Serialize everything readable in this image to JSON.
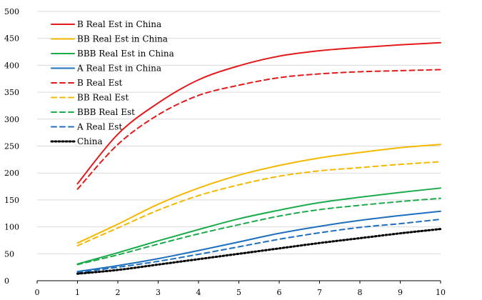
{
  "chart_data": {
    "type": "line",
    "title": "",
    "xlabel": "",
    "ylabel": "",
    "xlim": [
      0,
      10
    ],
    "ylim": [
      0,
      500
    ],
    "x_ticks": [
      0,
      1,
      2,
      3,
      4,
      5,
      6,
      7,
      8,
      9,
      10
    ],
    "y_ticks": [
      0,
      50,
      100,
      150,
      200,
      250,
      300,
      350,
      400,
      450,
      500
    ],
    "grid": "horizontal",
    "legend_position": "top-left",
    "x": [
      1,
      2,
      3,
      4,
      5,
      6,
      7,
      8,
      9,
      10
    ],
    "series": [
      {
        "name": "B Real Est in China",
        "color": "#e31a1c",
        "dash": "solid",
        "values": [
          180,
          272,
          330,
          373,
          399,
          417,
          427,
          433,
          438,
          442
        ]
      },
      {
        "name": "BB Real Est in China",
        "color": "#f5b800",
        "dash": "solid",
        "values": [
          70,
          105,
          142,
          172,
          196,
          214,
          228,
          238,
          247,
          253
        ]
      },
      {
        "name": "BBB Real Est in China",
        "color": "#1aab4b",
        "dash": "solid",
        "values": [
          31,
          52,
          74,
          95,
          115,
          131,
          145,
          155,
          164,
          172
        ]
      },
      {
        "name": "A Real Est in China",
        "color": "#1f6fbf",
        "dash": "solid",
        "values": [
          17,
          28,
          41,
          56,
          72,
          88,
          101,
          112,
          121,
          129
        ]
      },
      {
        "name": "B Real Est",
        "color": "#e31a1c",
        "dash": "dashed",
        "values": [
          170,
          253,
          308,
          344,
          363,
          377,
          384,
          388,
          390,
          392
        ]
      },
      {
        "name": "BB Real Est",
        "color": "#f5b800",
        "dash": "dashed",
        "values": [
          65,
          98,
          131,
          158,
          178,
          194,
          204,
          210,
          216,
          221
        ]
      },
      {
        "name": "BBB Real Est",
        "color": "#1aab4b",
        "dash": "dashed",
        "values": [
          30,
          48,
          68,
          87,
          104,
          120,
          132,
          140,
          147,
          153
        ]
      },
      {
        "name": "A Real Est",
        "color": "#1f6fbf",
        "dash": "dashed",
        "values": [
          15,
          25,
          36,
          49,
          63,
          77,
          89,
          99,
          106,
          114
        ]
      },
      {
        "name": "China",
        "color": "#000000",
        "dash": "dotted",
        "values": [
          13,
          20,
          30,
          40,
          50,
          60,
          70,
          79,
          88,
          96
        ]
      }
    ]
  }
}
